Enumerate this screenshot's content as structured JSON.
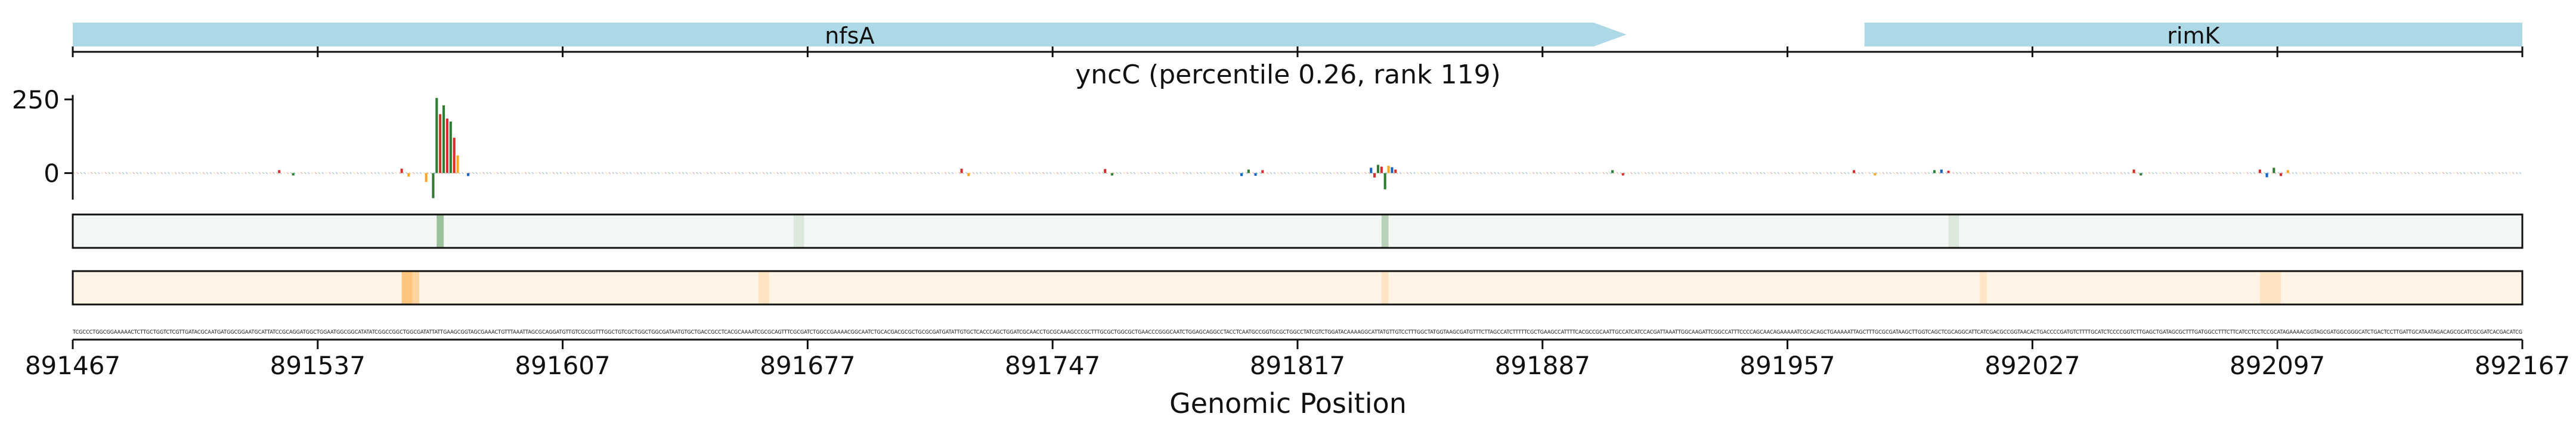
{
  "chart_data": {
    "type": "genome-track",
    "title": "yncC (percentile 0.26, rank 119)",
    "xlabel": "Genomic Position",
    "ylabel": "",
    "xlim": [
      891467,
      892167
    ],
    "x_ticks": [
      "891467",
      "891537",
      "891607",
      "891677",
      "891747",
      "891817",
      "891887",
      "891957",
      "892027",
      "892097",
      "892167"
    ],
    "ylim": [
      -100,
      280
    ],
    "y_ticks": [
      "250",
      "0"
    ],
    "genes": [
      {
        "name": "nfsA",
        "start": 891467,
        "end": 891911,
        "strand": "+",
        "color": "#add8e6"
      },
      {
        "name": "rimK",
        "start": 891979,
        "end": 892167,
        "strand": "+",
        "color": "#add8e6"
      }
    ],
    "attribution_peaks": [
      {
        "x": 891571,
        "value": 255,
        "color": "#2e7d32"
      },
      {
        "x": 891572,
        "value": 200,
        "color": "#d32f2f"
      },
      {
        "x": 891573,
        "value": 230,
        "color": "#2e7d32"
      },
      {
        "x": 891574,
        "value": 185,
        "color": "#d32f2f"
      },
      {
        "x": 891575,
        "value": 175,
        "color": "#2e7d32"
      },
      {
        "x": 891576,
        "value": 120,
        "color": "#d32f2f"
      },
      {
        "x": 891577,
        "value": 60,
        "color": "#f9a825"
      },
      {
        "x": 891570,
        "value": -85,
        "color": "#2e7d32"
      },
      {
        "x": 891568,
        "value": -30,
        "color": "#f9a825"
      },
      {
        "x": 891561,
        "value": 15,
        "color": "#d32f2f"
      },
      {
        "x": 891563,
        "value": -12,
        "color": "#f9a825"
      },
      {
        "x": 891580,
        "value": -10,
        "color": "#1565c0"
      },
      {
        "x": 891526,
        "value": 10,
        "color": "#d32f2f"
      },
      {
        "x": 891530,
        "value": -8,
        "color": "#2e7d32"
      },
      {
        "x": 891721,
        "value": 15,
        "color": "#d32f2f"
      },
      {
        "x": 891723,
        "value": -10,
        "color": "#f9a825"
      },
      {
        "x": 891762,
        "value": 14,
        "color": "#d32f2f"
      },
      {
        "x": 891764,
        "value": -8,
        "color": "#2e7d32"
      },
      {
        "x": 891801,
        "value": -10,
        "color": "#1565c0"
      },
      {
        "x": 891803,
        "value": 12,
        "color": "#2e7d32"
      },
      {
        "x": 891805,
        "value": -9,
        "color": "#1565c0"
      },
      {
        "x": 891807,
        "value": 10,
        "color": "#d32f2f"
      },
      {
        "x": 891838,
        "value": 18,
        "color": "#1565c0"
      },
      {
        "x": 891839,
        "value": -15,
        "color": "#d32f2f"
      },
      {
        "x": 891840,
        "value": 28,
        "color": "#2e7d32"
      },
      {
        "x": 891841,
        "value": 22,
        "color": "#d32f2f"
      },
      {
        "x": 891842,
        "value": -55,
        "color": "#2e7d32"
      },
      {
        "x": 891843,
        "value": 25,
        "color": "#f9a825"
      },
      {
        "x": 891844,
        "value": 20,
        "color": "#1565c0"
      },
      {
        "x": 891845,
        "value": 12,
        "color": "#d32f2f"
      },
      {
        "x": 891907,
        "value": 10,
        "color": "#2e7d32"
      },
      {
        "x": 891910,
        "value": -8,
        "color": "#d32f2f"
      },
      {
        "x": 891976,
        "value": 10,
        "color": "#d32f2f"
      },
      {
        "x": 891982,
        "value": -8,
        "color": "#f9a825"
      },
      {
        "x": 891999,
        "value": 10,
        "color": "#2e7d32"
      },
      {
        "x": 892001,
        "value": 12,
        "color": "#1565c0"
      },
      {
        "x": 892003,
        "value": 8,
        "color": "#d32f2f"
      },
      {
        "x": 892056,
        "value": 12,
        "color": "#d32f2f"
      },
      {
        "x": 892058,
        "value": -8,
        "color": "#2e7d32"
      },
      {
        "x": 892092,
        "value": 12,
        "color": "#d32f2f"
      },
      {
        "x": 892094,
        "value": -14,
        "color": "#1565c0"
      },
      {
        "x": 892096,
        "value": 18,
        "color": "#2e7d32"
      },
      {
        "x": 892098,
        "value": -10,
        "color": "#d32f2f"
      },
      {
        "x": 892100,
        "value": 10,
        "color": "#f9a825"
      }
    ],
    "heatmap_tracks": [
      {
        "color": "#2e7d32",
        "base_opacity": 0.06,
        "bands": [
          {
            "start": 891571,
            "end": 891573,
            "intensity": 0.45
          },
          {
            "start": 891673,
            "end": 891676,
            "intensity": 0.12
          },
          {
            "start": 891841,
            "end": 891843,
            "intensity": 0.3
          },
          {
            "start": 892003,
            "end": 892006,
            "intensity": 0.12
          }
        ]
      },
      {
        "color": "#ff8c00",
        "base_opacity": 0.1,
        "bands": [
          {
            "start": 891561,
            "end": 891564,
            "intensity": 0.45
          },
          {
            "start": 891564,
            "end": 891566,
            "intensity": 0.3
          },
          {
            "start": 891663,
            "end": 891666,
            "intensity": 0.15
          },
          {
            "start": 891841,
            "end": 891843,
            "intensity": 0.15
          },
          {
            "start": 892012,
            "end": 892014,
            "intensity": 0.12
          },
          {
            "start": 892092,
            "end": 892098,
            "intensity": 0.15
          }
        ]
      }
    ],
    "sequence": "TCGCCCTGGCGGAAAAACTCTTGCTGGTCTCGTTGATACGCAATGATGGCGGAATGCATTATCCGCAGGATGGCTGGAATGGCGGCATATATCGGCCGGCTGGCGATATTATTGAAGCGGTAGCGAAACTGTTTAAATTAGCGCAGGATGTTGTCGCGGTTTGGCTGTCGCTGGCTGGCGATAATGTGCTGACCGCCTCACGCAAAATCGCGCAGTTTCGCGATCTGGCCGAAAACGGCAATCTGCACGACGCGCTGCGCGATGATATTGTGCTCACCCAGCTGGATCGCAACCTGCGCAAAGCCCGCTTTGCGCTGGCGCTGAACCCGGGCAATCTGGAGCAGGCCTACCTCAATGCCGGTGCGCTGGCCTATCGTCTGGATACAAAAGGCATTATGTTGTCCTTTGGCTATGGTAAGCGATGTTTCTTAGCCATCTTTTTCGCTGAAGCCATTTTCACGCCGCAATTGCCATCATCCACGATTAAATTGGCAAGATTCGGCCATTTCCCCAGCAACAGAAAAATCGCACAGCTGAAAAATTAGCTTTGCGCGATAAGCTTGGTCAGCTCGCAGGCATTCATCGACGCCGGTAACACTGACCCCGATGTCTTTTGCATCTCCCCGGTCTTGAGCTGATAGCGCTTTGATGGCCTTTCTTCATCCTCCTCCGCATAGAAAACGGTAGCGATGGCGGGCATCTGACTCCTTGATTGCATAATAGACAGCGCATCGCGATCACGACATCG"
  }
}
